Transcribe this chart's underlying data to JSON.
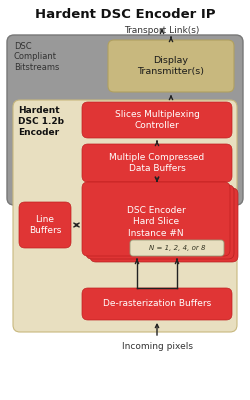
{
  "title": "Hardent DSC Encoder IP",
  "bg_color": "#ffffff",
  "outer_box_color": "#999999",
  "inner_box_color": "#e8dfc0",
  "red_color": "#e03535",
  "tan_color": "#c8b87e",
  "label_hardent": "Hardent\nDSC 1.2b\nEncoder",
  "label_transport": "Transport Link(s)",
  "label_dsc_compliant": "DSC\nCompliant\nBitstreams",
  "label_display": "Display\nTransmitter(s)",
  "label_slices": "Slices Multiplexing\nController",
  "label_buffers": "Multiple Compressed\nData Buffers",
  "label_encoder": "DSC Encoder\nHard Slice\nInstance #N",
  "label_n": "N = 1, 2, 4, or 8",
  "label_line": "Line\nBuffers",
  "label_derast": "De-rasterization Buffers",
  "label_incoming": "Incoming pixels",
  "arrow_color": "#222222"
}
